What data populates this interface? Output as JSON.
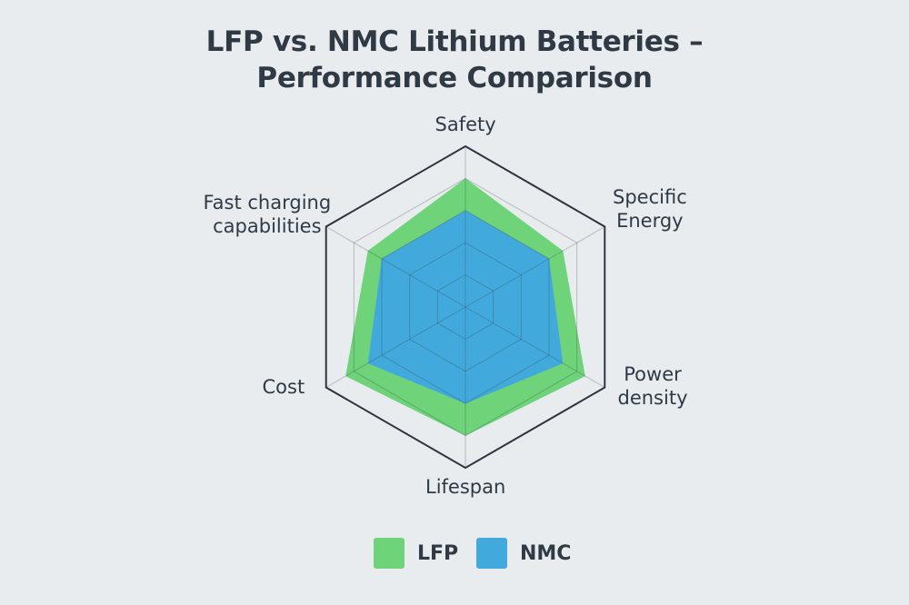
{
  "chart_data": {
    "type": "radar",
    "title": [
      "LFP vs. NMC Lithium Batteries –",
      "Performance Comparison"
    ],
    "axes": [
      "Safety",
      "Specific Energy",
      "Power density",
      "Lifespan",
      "Cost",
      "Fast charging capabilities"
    ],
    "axis_label_lines": [
      [
        "Safety"
      ],
      [
        "Specific",
        "Energy"
      ],
      [
        "Power",
        "density"
      ],
      [
        "Lifespan"
      ],
      [
        "Cost"
      ],
      [
        "Fast charging",
        "capabilities"
      ]
    ],
    "range": [
      0,
      5
    ],
    "grid_levels": 5,
    "series": [
      {
        "name": "LFP",
        "color": "#6fd37a",
        "values": [
          4.0,
          3.5,
          4.3,
          4.0,
          4.3,
          3.5
        ]
      },
      {
        "name": "NMC",
        "color": "#42a9dc",
        "values": [
          3.0,
          3.0,
          3.5,
          3.0,
          3.5,
          3.0
        ]
      }
    ],
    "legend_position": "bottom"
  }
}
